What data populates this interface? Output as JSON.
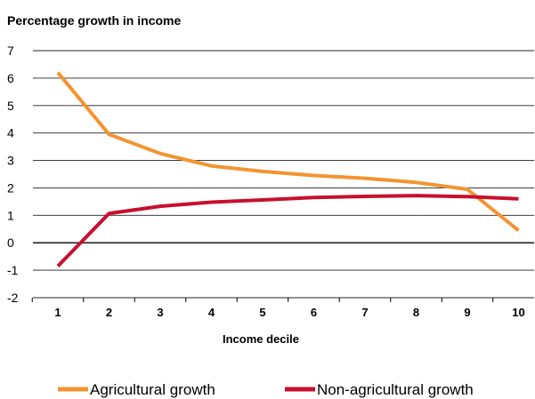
{
  "chart_data": {
    "type": "line",
    "title": "Percentage growth in income",
    "xlabel": "Income decile",
    "ylabel": "",
    "x": [
      1,
      2,
      3,
      4,
      5,
      6,
      7,
      8,
      9,
      10
    ],
    "x_tick_labels": [
      "1",
      "2",
      "3",
      "4",
      "5",
      "6",
      "7",
      "8",
      "9",
      "10"
    ],
    "y_tick_labels": [
      "-2",
      "-1",
      "0",
      "1",
      "2",
      "3",
      "4",
      "5",
      "6",
      "7"
    ],
    "ylim": [
      -2,
      7
    ],
    "grid": "horizontal",
    "legend_position": "bottom",
    "series": [
      {
        "name": "Agricultural growth",
        "color": "#F39431",
        "values": [
          6.2,
          3.95,
          3.25,
          2.8,
          2.6,
          2.45,
          2.35,
          2.2,
          1.95,
          0.45
        ]
      },
      {
        "name": "Non-agricultural growth",
        "color": "#C8102E",
        "values": [
          -0.85,
          1.07,
          1.33,
          1.48,
          1.56,
          1.65,
          1.69,
          1.72,
          1.68,
          1.6
        ]
      }
    ]
  }
}
